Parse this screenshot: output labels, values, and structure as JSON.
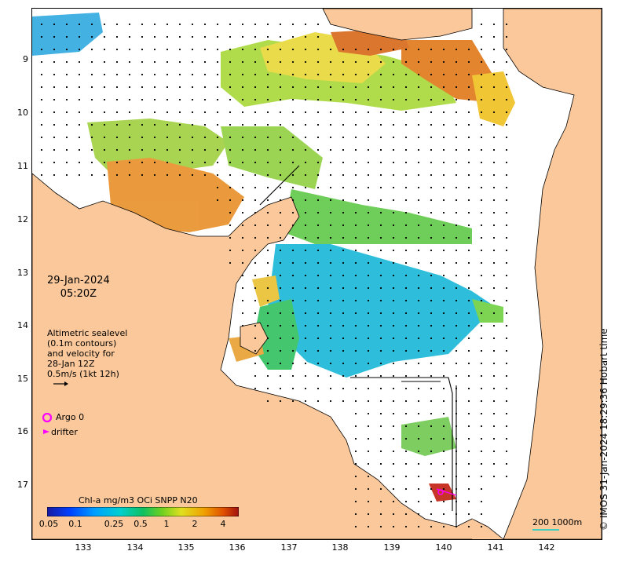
{
  "map": {
    "date": "29-Jan-2024",
    "time": "05:20Z",
    "credit": "© IMOS 31-Jan-2024 18:29:36 Hobart time",
    "latitude_ticks": [
      "9",
      "10",
      "11",
      "12",
      "13",
      "14",
      "15",
      "16",
      "17"
    ],
    "longitude_ticks": [
      "133",
      "134",
      "135",
      "136",
      "137",
      "138",
      "139",
      "140",
      "141",
      "142"
    ],
    "lat_range": [
      -17.7,
      -8.1
    ],
    "lon_range": [
      132.0,
      143.0
    ]
  },
  "legend": {
    "altimetry": [
      "Altimetric sealevel",
      "(0.1m contours)",
      "and velocity for",
      "28-Jan 12Z",
      "0.5m/s (1kt 12h)"
    ],
    "argo_label": "Argo 0",
    "drifter_label": "drifter",
    "argo_color": "#ff00ff",
    "drifter_color": "#ff00ff"
  },
  "colorbar": {
    "title": "Chl-a mg/m3 OCi SNPP N20",
    "ticks": [
      "0.05",
      "0.1",
      "0.25",
      "0.5",
      "1",
      "2",
      "4"
    ]
  },
  "scale": {
    "label": "200  1000m",
    "color": "#3fd0c0"
  },
  "colors": {
    "land": "#fac89a",
    "sea": "#ffffff"
  }
}
